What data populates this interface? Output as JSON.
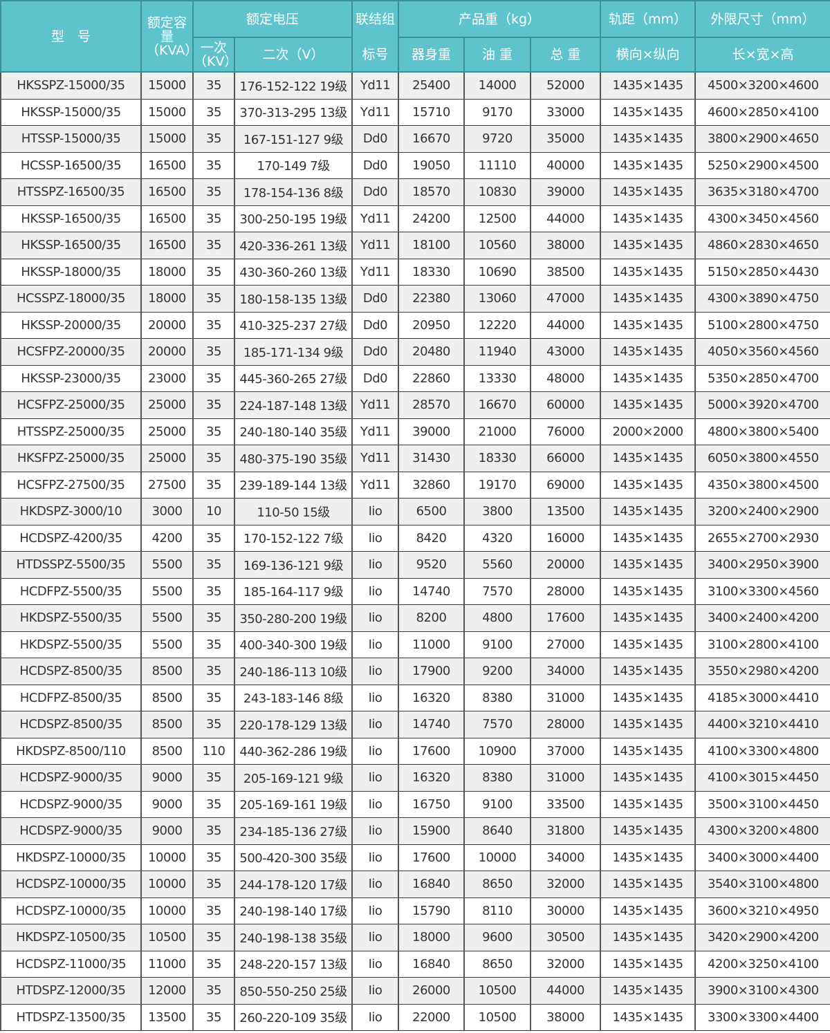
{
  "header": {
    "model": "型　号",
    "capacity": "额定容量（KVA）",
    "voltage": "额定电压",
    "primary": "一次（KV）",
    "secondary": "二次（V）",
    "connection_top": "联结组",
    "connection_bottom": "标号",
    "weight": "产品重（kg）",
    "body_weight": "器身重",
    "oil_weight": "油 重",
    "total_weight": "总 重",
    "gauge": "轨距（mm）",
    "gauge_sub": "横向×纵向",
    "dims": "外限尺寸（mm）",
    "dims_sub": "长×宽×高"
  },
  "colors": {
    "header_bg": "#5ec3cc",
    "alt_row": "#efefef"
  },
  "rows": [
    [
      "HKSSPZ-15000/35",
      "15000",
      "35",
      "176-152-122 19级",
      "Yd11",
      "25400",
      "14000",
      "52000",
      "1435×1435",
      "4500×3200×4600"
    ],
    [
      "HKSSP-15000/35",
      "15000",
      "35",
      "370-313-295 13级",
      "Yd11",
      "15710",
      "9170",
      "33000",
      "1435×1435",
      "4600×2850×4100"
    ],
    [
      "HTSSP-15000/35",
      "15000",
      "35",
      "167-151-127 9级",
      "Dd0",
      "16670",
      "9720",
      "35000",
      "1435×1435",
      "3800×2900×4650"
    ],
    [
      "HCSSP-16500/35",
      "16500",
      "35",
      "170-149 7级",
      "Dd0",
      "19050",
      "11110",
      "40000",
      "1435×1435",
      "5250×2900×4500"
    ],
    [
      "HTSSPZ-16500/35",
      "16500",
      "35",
      "178-154-136 8级",
      "Dd0",
      "18570",
      "10830",
      "39000",
      "1435×1435",
      "3635×3180×4700"
    ],
    [
      "HKSSP-16500/35",
      "16500",
      "35",
      "300-250-195 19级",
      "Yd11",
      "24200",
      "12500",
      "44000",
      "1435×1435",
      "4300×3450×4560"
    ],
    [
      "HKSSP-16500/35",
      "16500",
      "35",
      "420-336-261 13级",
      "Yd11",
      "18100",
      "10560",
      "38000",
      "1435×1435",
      "4860×2830×4650"
    ],
    [
      "HKSSP-18000/35",
      "18000",
      "35",
      "430-360-260 13级",
      "Yd11",
      "18330",
      "10690",
      "38500",
      "1435×1435",
      "5150×2850×4430"
    ],
    [
      "HCSSPZ-18000/35",
      "18000",
      "35",
      "180-158-135 13级",
      "Dd0",
      "22380",
      "13060",
      "47000",
      "1435×1435",
      "4300×3890×4750"
    ],
    [
      "HKSSP-20000/35",
      "20000",
      "35",
      "410-325-237 27级",
      "Dd0",
      "20950",
      "12220",
      "44000",
      "1435×1435",
      "5100×2800×4750"
    ],
    [
      "HCSFPZ-20000/35",
      "20000",
      "35",
      "185-171-134 9级",
      "Dd0",
      "20480",
      "11940",
      "43000",
      "1435×1435",
      "4050×3560×4560"
    ],
    [
      "HKSSP-23000/35",
      "23000",
      "35",
      "445-360-265 27级",
      "Dd0",
      "22860",
      "13330",
      "48000",
      "1435×1435",
      "5350×2850×4700"
    ],
    [
      "HCSFPZ-25000/35",
      "25000",
      "35",
      "224-187-148 13级",
      "Yd11",
      "28570",
      "16670",
      "60000",
      "1435×1435",
      "5000×3920×4700"
    ],
    [
      "HTSSPZ-25000/35",
      "25000",
      "35",
      "240-180-140 35级",
      "Yd11",
      "39000",
      "21000",
      "76000",
      "2000×2000",
      "4800×3800×5400"
    ],
    [
      "HKSFPZ-25000/35",
      "25000",
      "35",
      "480-375-190 35级",
      "Yd11",
      "31430",
      "18330",
      "66000",
      "1435×1435",
      "6050×3800×4550"
    ],
    [
      "HCSFPZ-27500/35",
      "27500",
      "35",
      "239-189-144 13级",
      "Yd11",
      "32860",
      "19170",
      "69000",
      "1435×1435",
      "4350×3800×4500"
    ],
    [
      "HKDSPZ-3000/10",
      "3000",
      "10",
      "110-50 15级",
      "Iio",
      "6500",
      "3800",
      "13500",
      "1435×1435",
      "3200×2400×2900"
    ],
    [
      "HCDSPZ-4200/35",
      "4200",
      "35",
      "170-152-122 7级",
      "Iio",
      "8420",
      "4320",
      "16000",
      "1435×1435",
      "2655×2700×2930"
    ],
    [
      "HTDSSPZ-5500/35",
      "5500",
      "35",
      "169-136-121 9级",
      "Iio",
      "9520",
      "5560",
      "20000",
      "1435×1435",
      "3400×2950×3900"
    ],
    [
      "HCDFPZ-5500/35",
      "5500",
      "35",
      "185-164-117 9级",
      "Iio",
      "14740",
      "7570",
      "28000",
      "1435×1435",
      "3100×3300×4560"
    ],
    [
      "HKDSPZ-5500/35",
      "5500",
      "35",
      "350-280-200 19级",
      "Iio",
      "8200",
      "4800",
      "17600",
      "1435×1435",
      "3400×2400×4200"
    ],
    [
      "HKDSPZ-5500/35",
      "5500",
      "35",
      "400-340-300 19级",
      "Iio",
      "11000",
      "9100",
      "27000",
      "1435×1435",
      "3100×2800×4100"
    ],
    [
      "HCDSPZ-8500/35",
      "8500",
      "35",
      "240-186-113 10级",
      "Iio",
      "17900",
      "9200",
      "34000",
      "1435×1435",
      "3550×2980×4200"
    ],
    [
      "HCDFPZ-8500/35",
      "8500",
      "35",
      "243-183-146 8级",
      "Iio",
      "16320",
      "8380",
      "31000",
      "1435×1435",
      "4185×3000×4410"
    ],
    [
      "HCDSPZ-8500/35",
      "8500",
      "35",
      "220-178-129 13级",
      "Iio",
      "14740",
      "7570",
      "28000",
      "1435×1435",
      "4400×3210×4410"
    ],
    [
      "HKDSPZ-8500/110",
      "8500",
      "110",
      "440-362-286 19级",
      "Iio",
      "17600",
      "10900",
      "37000",
      "1435×1435",
      "4100×3300×4800"
    ],
    [
      "HCDSPZ-9000/35",
      "9000",
      "35",
      "205-169-121 9级",
      "Iio",
      "16320",
      "8380",
      "31000",
      "1435×1435",
      "4100×3015×4450"
    ],
    [
      "HCDSPZ-9000/35",
      "9000",
      "35",
      "205-169-161 19级",
      "Iio",
      "16750",
      "9100",
      "33500",
      "1435×1435",
      "3500×3100×4450"
    ],
    [
      "HCDSPZ-9000/35",
      "9000",
      "35",
      "234-185-136 27级",
      "Iio",
      "15900",
      "8640",
      "31800",
      "1435×1435",
      "4300×3200×4800"
    ],
    [
      "HKDSPZ-10000/35",
      "10000",
      "35",
      "500-420-300 35级",
      "Iio",
      "17600",
      "10000",
      "34000",
      "1435×1435",
      "3400×3000×4400"
    ],
    [
      "HCDSPZ-10000/35",
      "10000",
      "35",
      "244-178-120 17级",
      "Iio",
      "16840",
      "8650",
      "32000",
      "1435×1435",
      "3540×3100×4800"
    ],
    [
      "HCDSPZ-10000/35",
      "10000",
      "35",
      "240-198-140 17级",
      "Iio",
      "15790",
      "8110",
      "30000",
      "1435×1435",
      "3600×3210×4950"
    ],
    [
      "HKDSPZ-10500/35",
      "10500",
      "35",
      "240-198-138 35级",
      "Iio",
      "18000",
      "9600",
      "30500",
      "1435×1435",
      "3420×2900×4200"
    ],
    [
      "HCDSPZ-11000/35",
      "11000",
      "35",
      "248-220-157 13级",
      "Iio",
      "16840",
      "8650",
      "32000",
      "1435×1435",
      "4200×3250×4100"
    ],
    [
      "HTDSPZ-12000/35",
      "12000",
      "35",
      "850-550-250 25级",
      "Iio",
      "26000",
      "10500",
      "44000",
      "1435×1435",
      "3900×3100×4300"
    ],
    [
      "HTDSPZ-13500/35",
      "13500",
      "35",
      "260-220-109 35级",
      "Iio",
      "22000",
      "10500",
      "38000",
      "1435×1435",
      "3300×3300×4400"
    ]
  ]
}
